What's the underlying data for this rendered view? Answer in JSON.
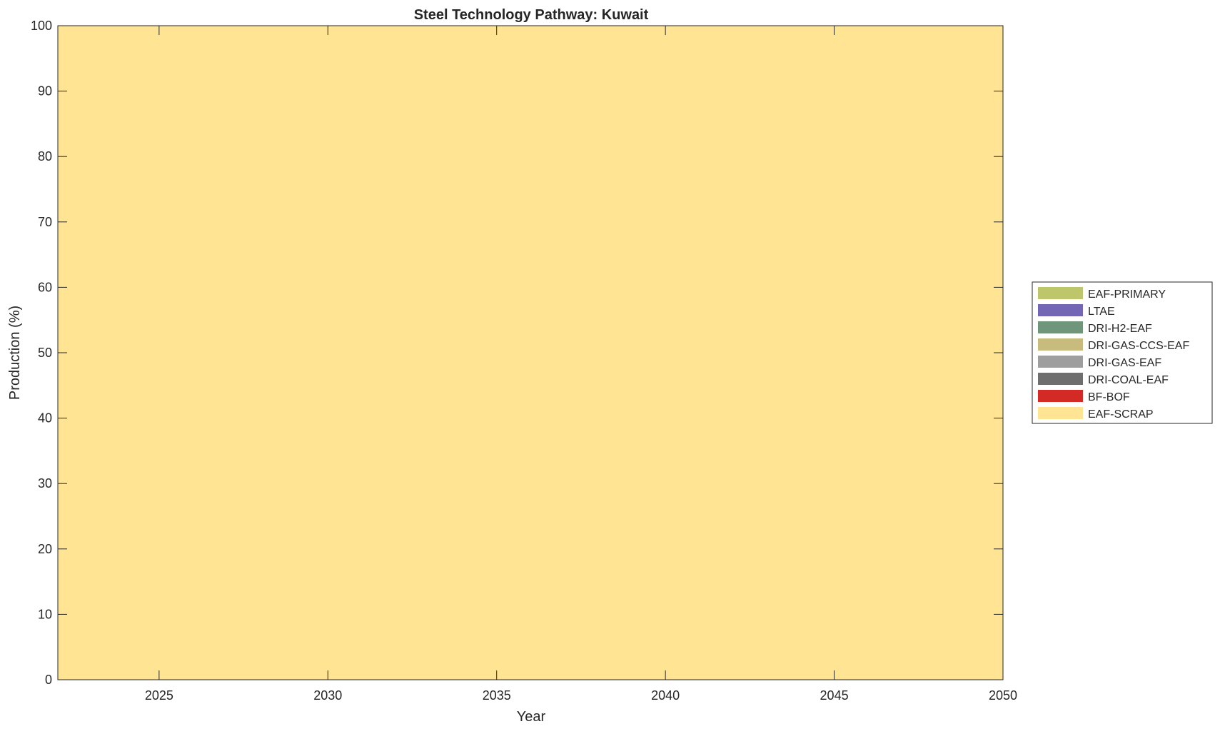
{
  "chart_data": {
    "type": "area",
    "stacked": true,
    "title": "Steel Technology Pathway: Kuwait",
    "xlabel": "Year",
    "ylabel": "Production (%)",
    "xlim": [
      2022,
      2050
    ],
    "ylim": [
      0,
      100
    ],
    "xticks": [
      2025,
      2030,
      2035,
      2040,
      2045,
      2050
    ],
    "yticks": [
      0,
      10,
      20,
      30,
      40,
      50,
      60,
      70,
      80,
      90,
      100
    ],
    "grid": false,
    "legend_position": "right",
    "x": [
      2022,
      2050
    ],
    "series": [
      {
        "name": "EAF-SCRAP",
        "color": "#FFE494",
        "values": [
          100,
          100
        ]
      },
      {
        "name": "BF-BOF",
        "color": "#D42A25",
        "values": [
          0,
          0
        ]
      },
      {
        "name": "DRI-COAL-EAF",
        "color": "#6E6E6E",
        "values": [
          0,
          0
        ]
      },
      {
        "name": "DRI-GAS-EAF",
        "color": "#9E9E9E",
        "values": [
          0,
          0
        ]
      },
      {
        "name": "DRI-GAS-CCS-EAF",
        "color": "#C7BC7E",
        "values": [
          0,
          0
        ]
      },
      {
        "name": "DRI-H2-EAF",
        "color": "#6F957A",
        "values": [
          0,
          0
        ]
      },
      {
        "name": "LTAE",
        "color": "#7266B5",
        "values": [
          0,
          0
        ]
      },
      {
        "name": "EAF-PRIMARY",
        "color": "#BDC66A",
        "values": [
          0,
          0
        ]
      }
    ]
  }
}
